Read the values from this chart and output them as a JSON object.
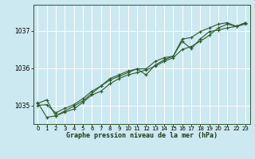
{
  "title": "Graphe pression niveau de la mer (hPa)",
  "bg_color": "#cce8f0",
  "line_color": "#2d5a2d",
  "grid_color": "#ffffff",
  "xlim": [
    -0.5,
    23.5
  ],
  "ylim": [
    1034.5,
    1037.7
  ],
  "yticks": [
    1035,
    1036,
    1037
  ],
  "xticks": [
    0,
    1,
    2,
    3,
    4,
    5,
    6,
    7,
    8,
    9,
    10,
    11,
    12,
    13,
    14,
    15,
    16,
    17,
    18,
    19,
    20,
    21,
    22,
    23
  ],
  "series": [
    [
      1035.05,
      1035.15,
      1034.72,
      1034.82,
      1034.9,
      1035.08,
      1035.28,
      1035.38,
      1035.58,
      1035.72,
      1035.82,
      1035.88,
      1035.95,
      1036.05,
      1036.18,
      1036.28,
      1036.5,
      1036.58,
      1036.72,
      1036.88,
      1037.08,
      1037.18,
      1037.12,
      1037.18
    ],
    [
      1035.08,
      1034.68,
      1034.72,
      1034.85,
      1034.98,
      1035.12,
      1035.32,
      1035.52,
      1035.72,
      1035.82,
      1035.92,
      1035.98,
      1035.82,
      1036.08,
      1036.22,
      1036.32,
      1036.72,
      1036.52,
      1036.78,
      1036.98,
      1037.02,
      1037.08,
      1037.12,
      1037.22
    ],
    [
      1035.0,
      1035.02,
      1034.8,
      1034.92,
      1035.02,
      1035.18,
      1035.38,
      1035.52,
      1035.68,
      1035.78,
      1035.88,
      1035.98,
      1035.98,
      1036.18,
      1036.28,
      1036.32,
      1036.78,
      1036.82,
      1036.98,
      1037.08,
      1037.18,
      1037.22,
      1037.12,
      1037.22
    ]
  ]
}
